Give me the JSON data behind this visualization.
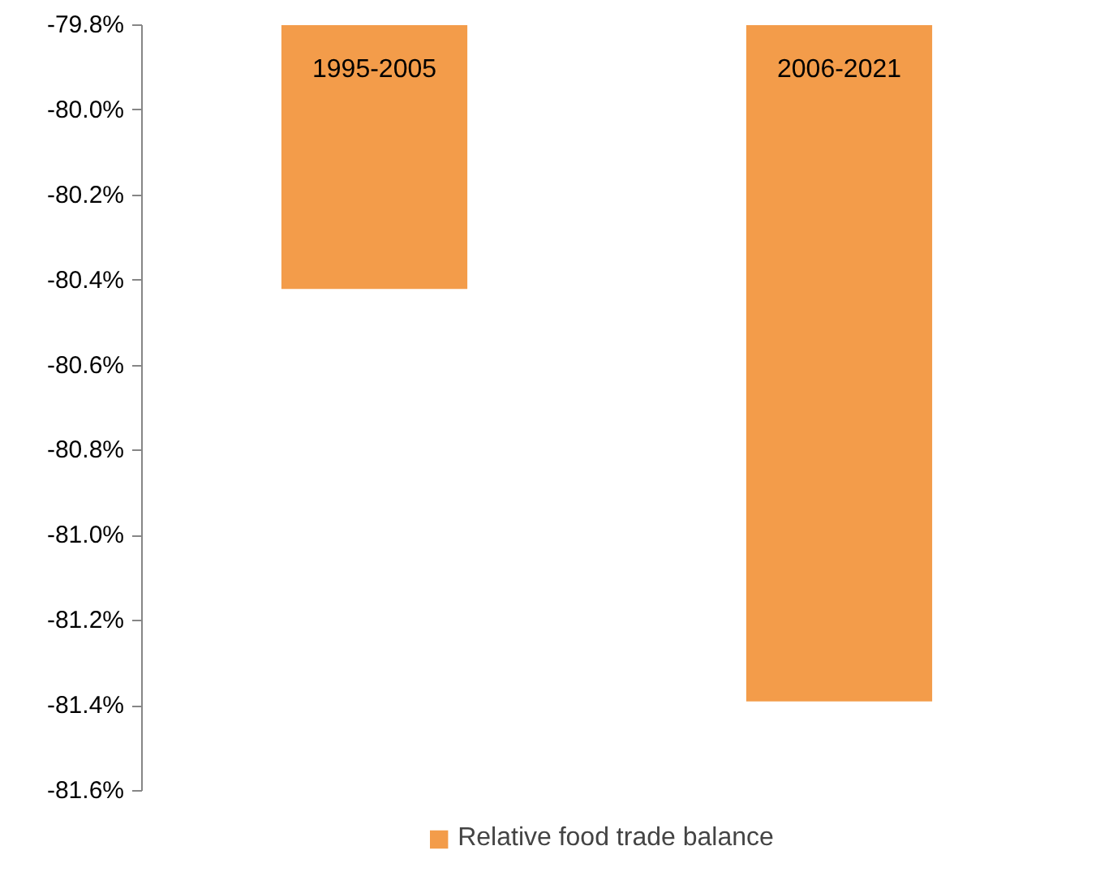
{
  "chart_data": {
    "type": "bar",
    "categories": [
      "1995-2005",
      "2006-2021"
    ],
    "series": [
      {
        "name": "Relative food trade balance",
        "color": "#f39c4a",
        "values": [
          -80.42,
          -81.39
        ]
      }
    ],
    "ylim": [
      -81.6,
      -79.8
    ],
    "yticks": [
      {
        "value": -81.6,
        "label": "-81.6%"
      },
      {
        "value": -81.4,
        "label": "-81.4%"
      },
      {
        "value": -81.2,
        "label": "-81.2%"
      },
      {
        "value": -81.0,
        "label": "-81.0%"
      },
      {
        "value": -80.8,
        "label": "-80.8%"
      },
      {
        "value": -80.6,
        "label": "-80.6%"
      },
      {
        "value": -80.4,
        "label": "-80.4%"
      },
      {
        "value": -80.2,
        "label": "-80.2%"
      },
      {
        "value": -80.0,
        "label": "-80.0%"
      },
      {
        "value": -79.8,
        "label": "-79.8%"
      }
    ],
    "grid": false,
    "legend": "bottom"
  }
}
